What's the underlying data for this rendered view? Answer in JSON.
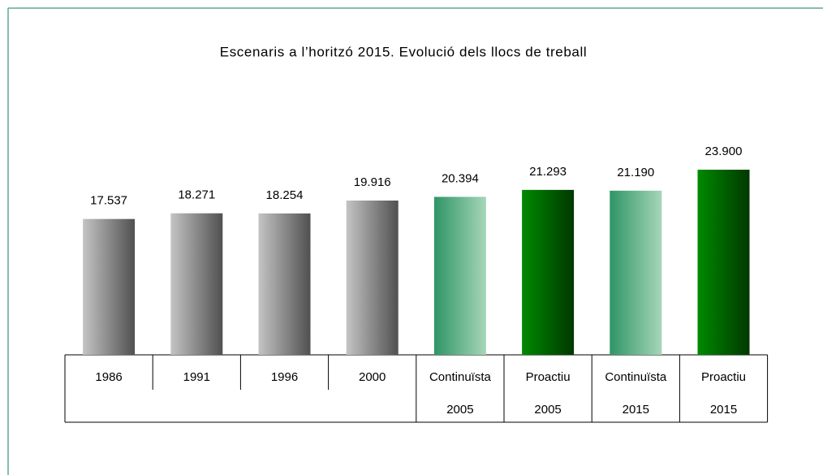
{
  "chart_data": {
    "type": "bar",
    "title": "Escenaris a l’horitzó 2015. Evolució dels llocs de treball",
    "categories": [
      [
        "1986"
      ],
      [
        "1991"
      ],
      [
        "1996"
      ],
      [
        "2000"
      ],
      [
        "Continuïsta",
        "2005"
      ],
      [
        "Proactiu",
        "2005"
      ],
      [
        "Continuïsta",
        "2015"
      ],
      [
        "Proactiu",
        "2015"
      ]
    ],
    "values": [
      17537,
      18271,
      18254,
      19916,
      20394,
      21293,
      21190,
      23900
    ],
    "value_labels": [
      "17.537",
      "18.271",
      "18.254",
      "19.916",
      "20.394",
      "21.293",
      "21.190",
      "23.900"
    ],
    "colors": [
      [
        "#c4c4c4",
        "#505050"
      ],
      [
        "#c4c4c4",
        "#505050"
      ],
      [
        "#c4c4c4",
        "#505050"
      ],
      [
        "#c4c4c4",
        "#505050"
      ],
      [
        "#2f9566",
        "#a6d6b8"
      ],
      [
        "#008a00",
        "#003800"
      ],
      [
        "#2f9566",
        "#a6d6b8"
      ],
      [
        "#008a00",
        "#003800"
      ]
    ],
    "ylim": [
      0,
      25000
    ]
  }
}
